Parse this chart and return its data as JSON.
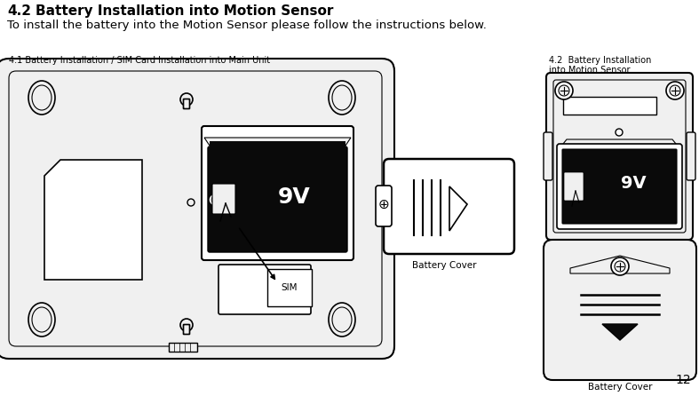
{
  "title_number": "4.2",
  "title_text": "Battery Installation into Motion Sensor",
  "subtitle": "To install the battery into the Motion Sensor please follow the instructions below.",
  "caption_left": "4.1 Battery Installation / SIM Card Installation into Main Unit",
  "caption_right_line1": "4.2  Battery Installation",
  "caption_right_line2": "into Motion Sensor",
  "battery_cover_label": "Battery Cover",
  "battery_cover_label2": "Battery Cover",
  "page_number": "12",
  "bg_color": "#ffffff",
  "text_color": "#000000",
  "line_color": "#000000",
  "dark_fill": "#0a0a0a",
  "light_gray": "#f0f0f0",
  "mid_gray": "#aaaaaa",
  "white": "#ffffff"
}
